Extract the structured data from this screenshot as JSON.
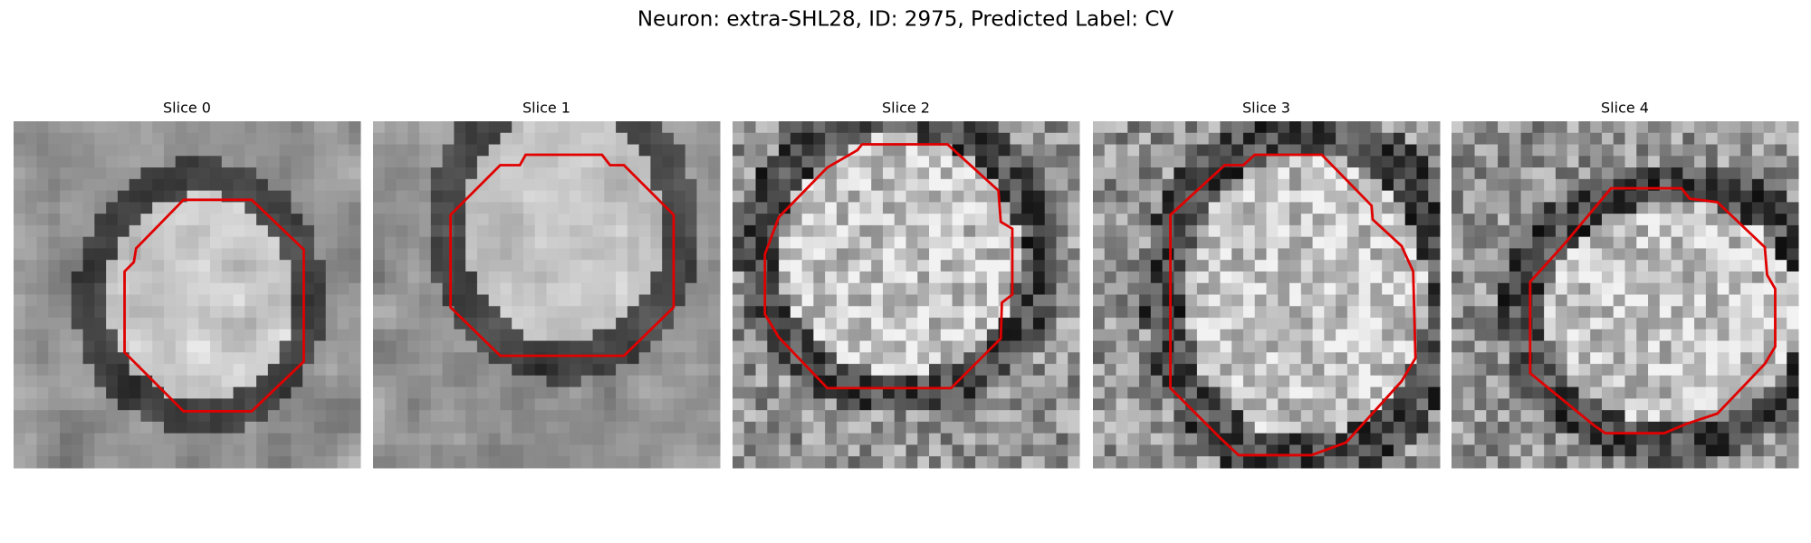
{
  "title": "Neuron: extra-SHL28, ID: 2975, Predicted Label: CV",
  "panels": [
    {
      "label": "Slice 0"
    },
    {
      "label": "Slice 1"
    },
    {
      "label": "Slice 2"
    },
    {
      "label": "Slice 3"
    },
    {
      "label": "Slice 4"
    }
  ]
}
